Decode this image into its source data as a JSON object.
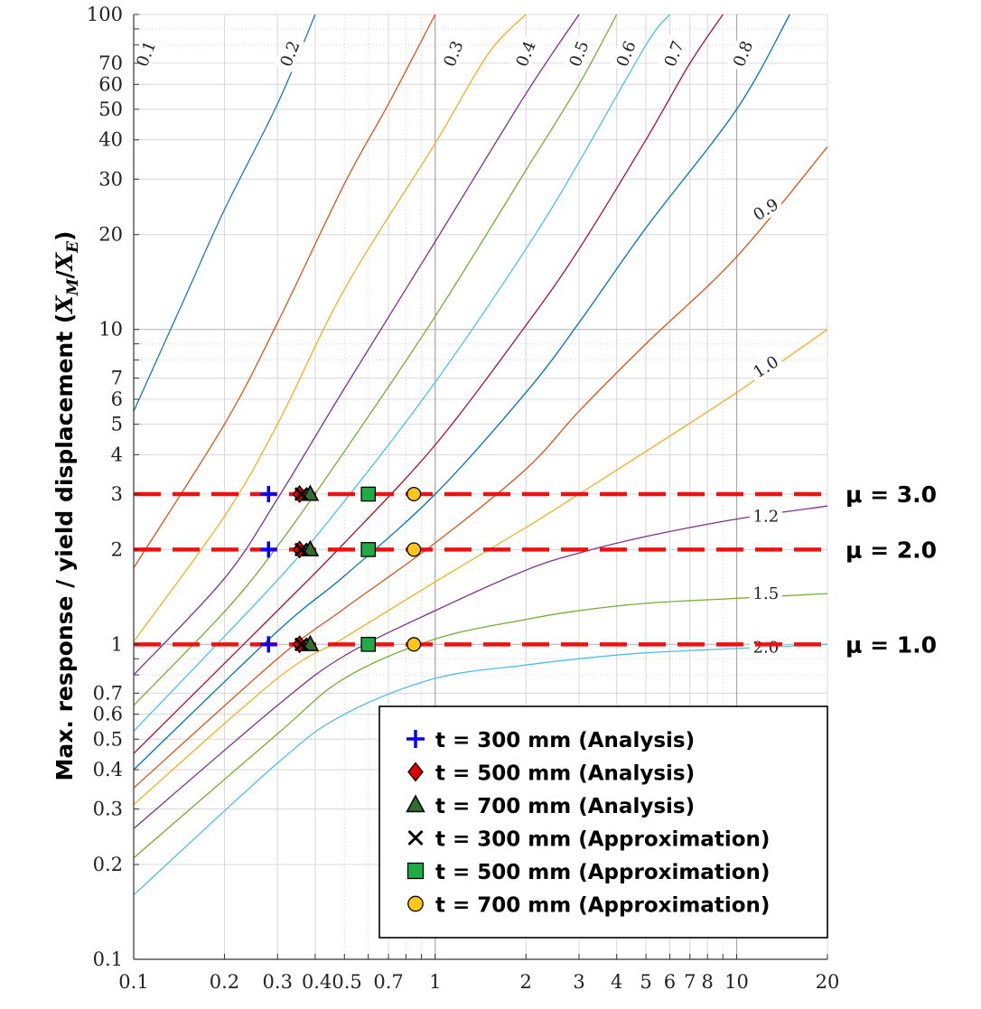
{
  "chart_data": {
    "type": "line",
    "title": "",
    "xlabel": "",
    "ylabel": "Max. response / yield displacement (X_M/X_E)",
    "ylabel_parts": {
      "main": "Max. response / yield displacement (",
      "var1": "X",
      "sub1": "M",
      "slash": "/",
      "var2": "X",
      "sub2": "E",
      "close": ")"
    },
    "x_scale": "log",
    "y_scale": "log",
    "xlim": [
      0.1,
      20
    ],
    "ylim": [
      0.1,
      100
    ],
    "grid": true,
    "legend_position": "bottom-right",
    "x_ticks": [
      {
        "value": 0.1,
        "label": "0.1"
      },
      {
        "value": 0.2,
        "label": "0.2"
      },
      {
        "value": 0.3,
        "label": "0.3"
      },
      {
        "value": 0.4,
        "label": "0.40.5"
      },
      {
        "value": 0.7,
        "label": "0.7"
      },
      {
        "value": 1,
        "label": "1"
      },
      {
        "value": 2,
        "label": "2"
      },
      {
        "value": 3,
        "label": "3"
      },
      {
        "value": 4,
        "label": "4"
      },
      {
        "value": 5,
        "label": "5"
      },
      {
        "value": 6,
        "label": "6"
      },
      {
        "value": 7,
        "label": "7"
      },
      {
        "value": 8,
        "label": "8"
      },
      {
        "value": 10,
        "label": "10"
      },
      {
        "value": 20,
        "label": "20"
      }
    ],
    "y_ticks": [
      {
        "value": 0.1,
        "label": "0.1"
      },
      {
        "value": 0.2,
        "label": "0.2"
      },
      {
        "value": 0.3,
        "label": "0.3"
      },
      {
        "value": 0.4,
        "label": "0.4"
      },
      {
        "value": 0.5,
        "label": "0.5"
      },
      {
        "value": 0.6,
        "label": "0.6"
      },
      {
        "value": 0.7,
        "label": "0.7"
      },
      {
        "value": 1,
        "label": "1"
      },
      {
        "value": 2,
        "label": "2"
      },
      {
        "value": 3,
        "label": "3"
      },
      {
        "value": 4,
        "label": "4"
      },
      {
        "value": 5,
        "label": "5"
      },
      {
        "value": 6,
        "label": "6"
      },
      {
        "value": 7,
        "label": "7"
      },
      {
        "value": 10,
        "label": "10"
      },
      {
        "value": 20,
        "label": "20"
      },
      {
        "value": 30,
        "label": "30"
      },
      {
        "value": 40,
        "label": "40"
      },
      {
        "value": 50,
        "label": "50"
      },
      {
        "value": 60,
        "label": "60"
      },
      {
        "value": 70,
        "label": "70"
      },
      {
        "value": 100,
        "label": "100"
      }
    ],
    "curves": [
      {
        "label": "0.1",
        "color": "#1f77b4",
        "label_at": [
          0.11,
          75
        ],
        "points": [
          [
            0.1,
            5.5
          ],
          [
            0.15,
            13
          ],
          [
            0.2,
            24
          ],
          [
            0.3,
            52
          ],
          [
            0.4,
            100
          ]
        ]
      },
      {
        "label": "0.2",
        "color": "#d95319",
        "label_at": [
          0.33,
          75
        ],
        "points": [
          [
            0.1,
            1.75
          ],
          [
            0.2,
            5
          ],
          [
            0.3,
            10.5
          ],
          [
            0.5,
            29
          ],
          [
            0.7,
            52
          ],
          [
            1,
            100
          ]
        ]
      },
      {
        "label": "0.3",
        "color": "#edb120",
        "label_at": [
          1.15,
          75
        ],
        "points": [
          [
            0.1,
            1.02
          ],
          [
            0.2,
            2.55
          ],
          [
            0.3,
            5
          ],
          [
            0.5,
            13.4
          ],
          [
            1,
            39
          ],
          [
            1.5,
            75
          ],
          [
            2,
            100
          ]
        ]
      },
      {
        "label": "0.4",
        "color": "#7e2f8e",
        "label_at": [
          2.0,
          75
        ],
        "points": [
          [
            0.1,
            0.8
          ],
          [
            0.2,
            1.62
          ],
          [
            0.3,
            2.9
          ],
          [
            0.5,
            6.5
          ],
          [
            1,
            19
          ],
          [
            2,
            56
          ],
          [
            3,
            100
          ]
        ]
      },
      {
        "label": "0.5",
        "color": "#77ac30",
        "label_at": [
          3.0,
          75
        ],
        "points": [
          [
            0.1,
            0.64
          ],
          [
            0.2,
            1.27
          ],
          [
            0.3,
            2.05
          ],
          [
            0.5,
            4.1
          ],
          [
            1,
            11
          ],
          [
            2,
            32
          ],
          [
            3,
            60
          ],
          [
            4,
            100
          ]
        ]
      },
      {
        "label": "0.6",
        "color": "#4dbeee",
        "label_at": [
          4.3,
          75
        ],
        "points": [
          [
            0.1,
            0.53
          ],
          [
            0.3,
            1.6
          ],
          [
            0.5,
            2.85
          ],
          [
            1,
            6.8
          ],
          [
            2,
            18
          ],
          [
            3,
            34
          ],
          [
            5,
            80
          ],
          [
            6,
            100
          ]
        ]
      },
      {
        "label": "0.7",
        "color": "#a2142f",
        "label_at": [
          6.2,
          75
        ],
        "points": [
          [
            0.1,
            0.45
          ],
          [
            0.3,
            1.28
          ],
          [
            0.5,
            2.1
          ],
          [
            1,
            4.3
          ],
          [
            2,
            10.3
          ],
          [
            3,
            18
          ],
          [
            5,
            40
          ],
          [
            7,
            70
          ],
          [
            9,
            100
          ]
        ]
      },
      {
        "label": "0.8",
        "color": "#0072bd",
        "label_at": [
          10.5,
          75
        ],
        "points": [
          [
            0.1,
            0.4
          ],
          [
            0.3,
            1.1
          ],
          [
            0.5,
            1.65
          ],
          [
            1,
            3
          ],
          [
            2,
            6.3
          ],
          [
            3,
            10.5
          ],
          [
            5,
            21
          ],
          [
            10,
            50
          ],
          [
            15,
            100
          ]
        ]
      },
      {
        "label": "0.9",
        "color": "#d95319",
        "label_at": [
          12.5,
          24
        ],
        "points": [
          [
            0.1,
            0.35
          ],
          [
            0.3,
            0.9
          ],
          [
            0.5,
            1.3
          ],
          [
            1,
            2.1
          ],
          [
            2,
            3.6
          ],
          [
            3,
            5.5
          ],
          [
            5,
            9
          ],
          [
            10,
            17
          ],
          [
            20,
            38
          ]
        ]
      },
      {
        "label": "1.0",
        "color": "#edb120",
        "label_at": [
          12.5,
          7.6
        ],
        "points": [
          [
            0.1,
            0.31
          ],
          [
            0.3,
            0.78
          ],
          [
            0.5,
            1.05
          ],
          [
            1,
            1.58
          ],
          [
            2,
            2.35
          ],
          [
            3,
            3
          ],
          [
            5,
            4.1
          ],
          [
            10,
            6.3
          ],
          [
            20,
            10
          ]
        ]
      },
      {
        "label": "1.2",
        "color": "#7e2f8e",
        "label_at": [
          12.5,
          2.55
        ],
        "points": [
          [
            0.1,
            0.26
          ],
          [
            0.3,
            0.64
          ],
          [
            0.5,
            0.92
          ],
          [
            1,
            1.28
          ],
          [
            2,
            1.72
          ],
          [
            3,
            1.95
          ],
          [
            5,
            2.2
          ],
          [
            10,
            2.5
          ],
          [
            20,
            2.75
          ]
        ]
      },
      {
        "label": "1.5",
        "color": "#77ac30",
        "label_at": [
          12.5,
          1.45
        ],
        "points": [
          [
            0.1,
            0.21
          ],
          [
            0.3,
            0.52
          ],
          [
            0.5,
            0.78
          ],
          [
            1,
            1.04
          ],
          [
            2,
            1.2
          ],
          [
            3,
            1.28
          ],
          [
            5,
            1.35
          ],
          [
            10,
            1.4
          ],
          [
            20,
            1.45
          ]
        ]
      },
      {
        "label": "2.0",
        "color": "#4dbeee",
        "label_at": [
          12.5,
          0.98
        ],
        "points": [
          [
            0.1,
            0.16
          ],
          [
            0.3,
            0.42
          ],
          [
            0.5,
            0.6
          ],
          [
            1,
            0.78
          ],
          [
            2,
            0.86
          ],
          [
            3,
            0.9
          ],
          [
            5,
            0.94
          ],
          [
            10,
            0.97
          ],
          [
            20,
            1.0
          ]
        ]
      }
    ],
    "reference_lines": [
      {
        "y": 3.0,
        "label": "μ = 3.0",
        "color": "#ee1111"
      },
      {
        "y": 2.0,
        "label": "μ = 2.0",
        "color": "#ee1111"
      },
      {
        "y": 1.0,
        "label": "μ = 1.0",
        "color": "#ee1111"
      }
    ],
    "series": [
      {
        "name": "t = 300 mm (Analysis)",
        "marker": "plus",
        "color": "#0000ff",
        "points": [
          [
            0.28,
            3
          ],
          [
            0.28,
            2
          ],
          [
            0.28,
            1
          ]
        ]
      },
      {
        "name": "t = 500 mm (Analysis)",
        "marker": "diamond",
        "color": "#dd0000",
        "points": [
          [
            0.355,
            3
          ],
          [
            0.355,
            2
          ],
          [
            0.355,
            1
          ]
        ]
      },
      {
        "name": "t = 700 mm (Analysis)",
        "marker": "triangle",
        "color": "#2f6f2f",
        "points": [
          [
            0.385,
            3
          ],
          [
            0.385,
            2
          ],
          [
            0.385,
            1
          ]
        ]
      },
      {
        "name": "t = 300 mm (Approximation)",
        "marker": "x",
        "color": "#000000",
        "points": [
          [
            0.36,
            3
          ],
          [
            0.36,
            2
          ],
          [
            0.36,
            1
          ]
        ]
      },
      {
        "name": "t = 500 mm (Approximation)",
        "marker": "square",
        "color": "#22aa44",
        "points": [
          [
            0.6,
            3
          ],
          [
            0.6,
            2
          ],
          [
            0.6,
            1
          ]
        ]
      },
      {
        "name": "t = 700 mm (Approximation)",
        "marker": "circle",
        "color": "#ffc61a",
        "points": [
          [
            0.85,
            3
          ],
          [
            0.85,
            2
          ],
          [
            0.85,
            1
          ]
        ]
      }
    ]
  }
}
